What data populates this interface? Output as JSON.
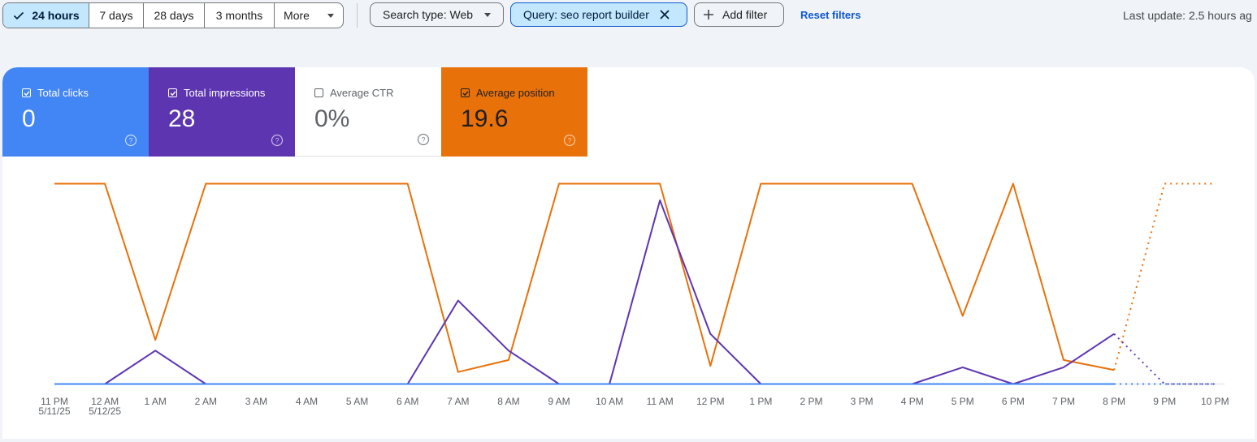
{
  "filters": {
    "ranges": [
      {
        "label": "24 hours",
        "active": true
      },
      {
        "label": "7 days",
        "active": false
      },
      {
        "label": "28 days",
        "active": false
      },
      {
        "label": "3 months",
        "active": false
      }
    ],
    "more_label": "More",
    "search_type_label": "Search type: Web",
    "query_label": "Query: seo report builder",
    "add_filter_label": "Add filter",
    "reset_label": "Reset filters",
    "last_update": "Last update: 2.5 hours ag"
  },
  "metrics": [
    {
      "label": "Total clicks",
      "value": "0",
      "checked": true,
      "color": "#4285f4"
    },
    {
      "label": "Total impressions",
      "value": "28",
      "checked": true,
      "color": "#5e35b1"
    },
    {
      "label": "Average CTR",
      "value": "0%",
      "checked": false,
      "color": "#ffffff"
    },
    {
      "label": "Average position",
      "value": "19.6",
      "checked": true,
      "color": "#e8710a"
    }
  ],
  "chart_data": {
    "type": "line",
    "categories": [
      "11 PM 5/11/25",
      "12 AM 5/12/25",
      "1 AM",
      "2 AM",
      "3 AM",
      "4 AM",
      "5 AM",
      "6 AM",
      "7 AM",
      "8 AM",
      "9 AM",
      "10 AM",
      "11 AM",
      "12 PM",
      "1 PM",
      "2 PM",
      "3 PM",
      "4 PM",
      "5 PM",
      "6 PM",
      "7 PM",
      "8 PM",
      "9 PM",
      "10 PM"
    ],
    "series": [
      {
        "name": "Total clicks",
        "color": "#4285f4",
        "values": [
          0,
          0,
          0,
          0,
          0,
          0,
          0,
          0,
          0,
          0,
          0,
          0,
          0,
          0,
          0,
          0,
          0,
          0,
          0,
          0,
          0,
          0,
          0,
          0
        ],
        "dotted_from": 21
      },
      {
        "name": "Total impressions",
        "color": "#5e35b1",
        "values": [
          0,
          0,
          2,
          0,
          0,
          0,
          0,
          0,
          5,
          2,
          0,
          0,
          11,
          3,
          0,
          0,
          0,
          0,
          1,
          0,
          1,
          3,
          0,
          0
        ],
        "dotted_from": 21
      },
      {
        "name": "Average position",
        "color": "#e8710a",
        "values": [
          2,
          2,
          41,
          2,
          2,
          2,
          2,
          2,
          49,
          46,
          2,
          2,
          2,
          47.5,
          2,
          2,
          2,
          2,
          35,
          2,
          46,
          48.5,
          2,
          2
        ],
        "dotted_from": 21
      }
    ],
    "axes_hidden": true
  }
}
